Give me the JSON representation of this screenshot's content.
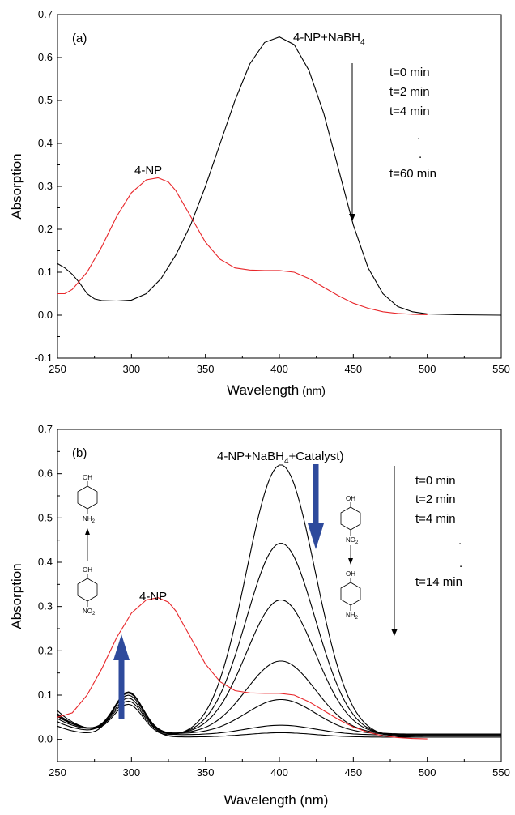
{
  "colors": {
    "series_black": "#000000",
    "series_red": "#e8262a",
    "blue_arrow": "#2e4a9c"
  },
  "chart_data": [
    {
      "id": "a",
      "type": "line",
      "panel_label": "(a)",
      "xlabel": "Wavelength",
      "xlabel_unit": "(nm)",
      "ylabel": "Absorption",
      "xlim": [
        250,
        550
      ],
      "ylim": [
        -0.1,
        0.7
      ],
      "x_ticks": [
        250,
        300,
        350,
        400,
        450,
        500,
        550
      ],
      "y_ticks": [
        -0.1,
        0.0,
        0.1,
        0.2,
        0.3,
        0.4,
        0.5,
        0.6,
        0.7
      ],
      "grid": false,
      "annotations": {
        "peak_label_main": "4-NP+NaBH",
        "peak_label_sub": "4",
        "red_label": "4-NP",
        "time_labels": [
          "t=0 min",
          "t=2 min",
          "t=4 min",
          ".",
          ".",
          "t=60 min"
        ]
      },
      "series": [
        {
          "color": "black",
          "x": [
            250,
            255,
            260,
            265,
            270,
            275,
            280,
            290,
            300,
            310,
            320,
            330,
            340,
            350,
            360,
            370,
            380,
            390,
            400,
            410,
            420,
            430,
            440,
            450,
            460,
            470,
            480,
            490,
            500,
            520,
            550
          ],
          "y": [
            0.12,
            0.11,
            0.095,
            0.075,
            0.05,
            0.038,
            0.034,
            0.033,
            0.035,
            0.05,
            0.085,
            0.14,
            0.21,
            0.3,
            0.4,
            0.5,
            0.585,
            0.635,
            0.648,
            0.63,
            0.57,
            0.47,
            0.34,
            0.21,
            0.11,
            0.05,
            0.02,
            0.008,
            0.003,
            0.001,
            0.0
          ]
        },
        {
          "color": "red",
          "x": [
            250,
            255,
            260,
            270,
            280,
            290,
            300,
            310,
            318,
            325,
            330,
            340,
            350,
            360,
            370,
            380,
            390,
            400,
            410,
            420,
            430,
            440,
            450,
            460,
            470,
            480,
            490,
            500
          ],
          "y": [
            0.05,
            0.05,
            0.06,
            0.1,
            0.16,
            0.23,
            0.285,
            0.315,
            0.32,
            0.31,
            0.29,
            0.23,
            0.17,
            0.13,
            0.11,
            0.105,
            0.104,
            0.104,
            0.1,
            0.085,
            0.065,
            0.045,
            0.028,
            0.016,
            0.008,
            0.004,
            0.002,
            0.001
          ]
        }
      ]
    },
    {
      "id": "b",
      "type": "line",
      "panel_label": "(b)",
      "xlabel": "Wavelength (nm)",
      "ylabel": "Absorption",
      "xlim": [
        250,
        550
      ],
      "ylim": [
        -0.05,
        0.7
      ],
      "x_ticks": [
        250,
        300,
        350,
        400,
        450,
        500,
        550
      ],
      "y_ticks": [
        0.0,
        0.1,
        0.2,
        0.3,
        0.4,
        0.5,
        0.6,
        0.7
      ],
      "grid": false,
      "annotations": {
        "peak_label_main": "4-NP+NaBH",
        "peak_label_sub": "4",
        "peak_label_tail": "+Catalyst)",
        "red_label": "4-NP",
        "time_labels": [
          "t=0 min",
          "t=2 min",
          "t=4 min",
          ".",
          ".",
          "t=14 min"
        ],
        "chem_left_top": "OH",
        "chem_left_top_sub": "NH",
        "chem_left_top_sub2": "2",
        "chem_left_bottom": "OH",
        "chem_left_bottom_sub": "NO",
        "chem_left_bottom_sub2": "2",
        "chem_right_top": "OH",
        "chem_right_top_sub": "NO",
        "chem_right_top_sub2": "2",
        "chem_right_bottom": "OH",
        "chem_right_bottom_sub": "NH",
        "chem_right_bottom_sub2": "2"
      },
      "series": [
        {
          "color": "black",
          "peak": 0.615,
          "low": 0.06,
          "uv": 0.07,
          "tail": 0.005
        },
        {
          "color": "black",
          "peak": 0.435,
          "low": 0.05,
          "uv": 0.075,
          "tail": 0.008
        },
        {
          "color": "black",
          "peak": 0.305,
          "low": 0.045,
          "uv": 0.08,
          "tail": 0.01
        },
        {
          "color": "black",
          "peak": 0.165,
          "low": 0.04,
          "uv": 0.085,
          "tail": 0.012
        },
        {
          "color": "black",
          "peak": 0.078,
          "low": 0.035,
          "uv": 0.09,
          "tail": 0.012
        },
        {
          "color": "black",
          "peak": 0.022,
          "low": 0.03,
          "uv": 0.095,
          "tail": 0.01
        },
        {
          "color": "black",
          "peak": 0.01,
          "low": 0.025,
          "uv": 0.1,
          "tail": 0.005
        },
        {
          "color": "red",
          "x": [
            250,
            260,
            270,
            280,
            290,
            300,
            310,
            318,
            325,
            330,
            340,
            350,
            360,
            370,
            380,
            390,
            400,
            410,
            420,
            430,
            440,
            450,
            460,
            470,
            480,
            490,
            500
          ],
          "y": [
            0.05,
            0.06,
            0.1,
            0.16,
            0.23,
            0.285,
            0.315,
            0.32,
            0.31,
            0.29,
            0.23,
            0.17,
            0.13,
            0.11,
            0.105,
            0.104,
            0.104,
            0.1,
            0.085,
            0.065,
            0.045,
            0.028,
            0.016,
            0.008,
            0.004,
            0.002,
            0.001
          ]
        }
      ]
    }
  ]
}
